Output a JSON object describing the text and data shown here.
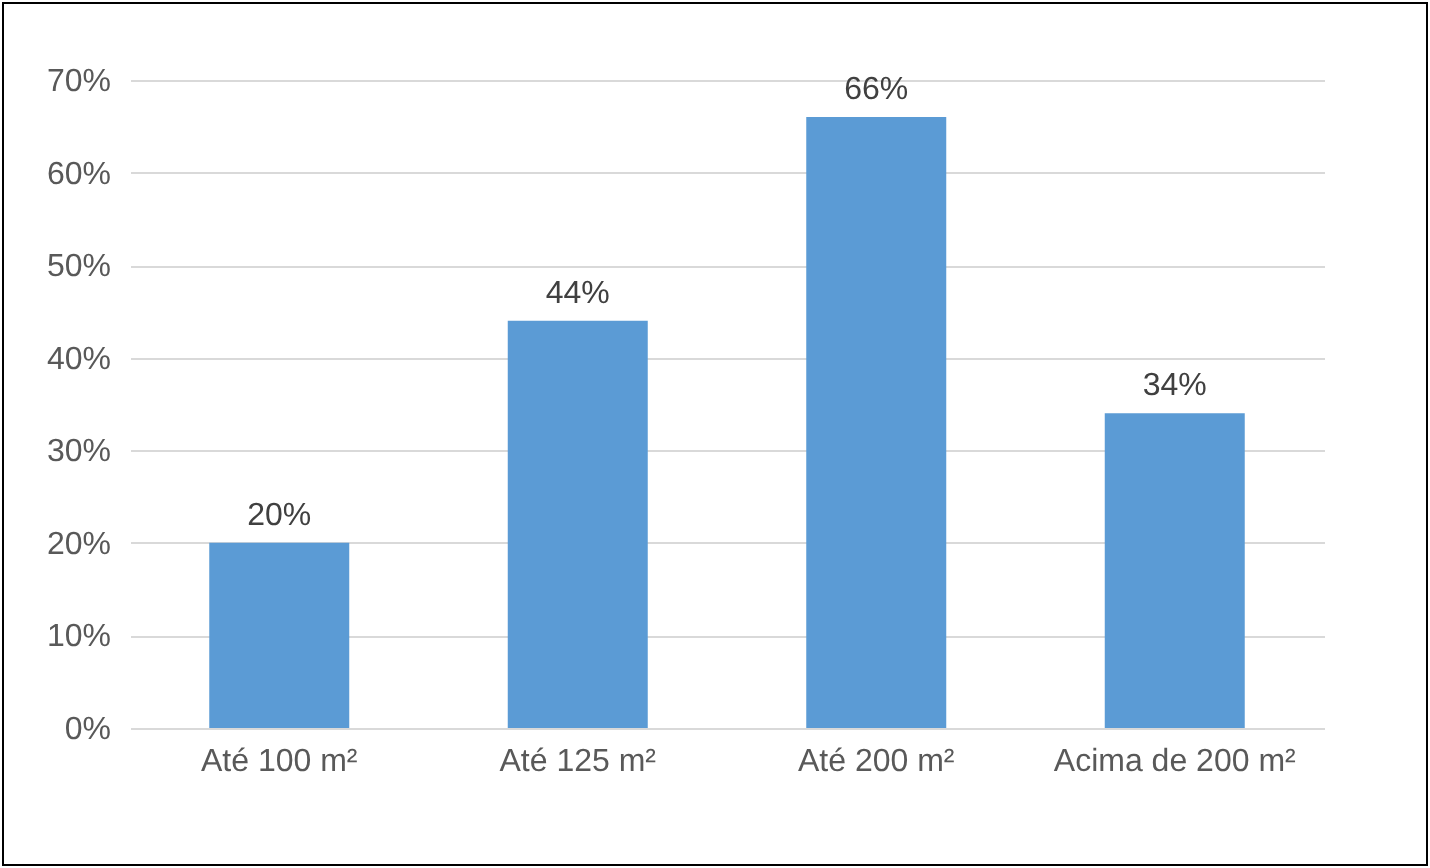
{
  "chart_data": {
    "type": "bar",
    "categories": [
      "Até 100 m²",
      "Até 125 m²",
      "Até 200 m²",
      "Acima de 200 m²"
    ],
    "values": [
      20,
      44,
      66,
      34
    ],
    "value_labels": [
      "20%",
      "44%",
      "66%",
      "34%"
    ],
    "color": "#5b9bd5",
    "ylim": [
      0,
      70
    ],
    "yticks": [
      {
        "value": 0,
        "label": "0%"
      },
      {
        "value": 10,
        "label": "10%"
      },
      {
        "value": 20,
        "label": "20%"
      },
      {
        "value": 30,
        "label": "30%"
      },
      {
        "value": 40,
        "label": "40%"
      },
      {
        "value": 50,
        "label": "50%"
      },
      {
        "value": 60,
        "label": "60%"
      },
      {
        "value": 70,
        "label": "70%"
      }
    ],
    "grid": "y"
  }
}
